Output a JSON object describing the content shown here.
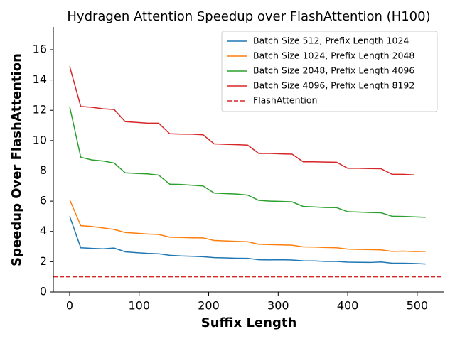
{
  "chart_data": {
    "type": "line",
    "title": "Hydragen Attention Speedup over FlashAttention (H100)",
    "x_label": "Suffix Length",
    "y_label": "Speedup Over FlashAttention",
    "x": [
      0,
      16,
      32,
      48,
      64,
      80,
      96,
      112,
      128,
      144,
      160,
      176,
      192,
      208,
      224,
      240,
      256,
      272,
      288,
      304,
      320,
      336,
      352,
      368,
      384,
      400,
      416,
      432,
      448,
      464,
      480,
      496,
      512
    ],
    "series": [
      {
        "name": "Batch Size 512, Prefix Length 1024",
        "color": "#1f77b4",
        "values": [
          5.0,
          2.92,
          2.88,
          2.85,
          2.9,
          2.65,
          2.6,
          2.55,
          2.52,
          2.42,
          2.38,
          2.36,
          2.33,
          2.27,
          2.25,
          2.23,
          2.22,
          2.13,
          2.12,
          2.13,
          2.11,
          2.06,
          2.05,
          2.02,
          2.02,
          1.97,
          1.96,
          1.95,
          1.98,
          1.9,
          1.9,
          1.88,
          1.85
        ]
      },
      {
        "name": "Batch Size 1024, Prefix Length 2048",
        "color": "#ff7f0e",
        "values": [
          6.1,
          4.38,
          4.33,
          4.23,
          4.13,
          3.93,
          3.88,
          3.83,
          3.8,
          3.62,
          3.6,
          3.58,
          3.57,
          3.4,
          3.37,
          3.34,
          3.32,
          3.15,
          3.13,
          3.11,
          3.09,
          2.98,
          2.97,
          2.94,
          2.92,
          2.83,
          2.81,
          2.8,
          2.78,
          2.68,
          2.7,
          2.67,
          2.68
        ]
      },
      {
        "name": "Batch Size 2048, Prefix Length 4096",
        "color": "#2ca02c",
        "values": [
          12.25,
          8.9,
          8.72,
          8.65,
          8.52,
          7.87,
          7.83,
          7.8,
          7.72,
          7.12,
          7.1,
          7.05,
          7.0,
          6.53,
          6.5,
          6.47,
          6.4,
          6.05,
          6.0,
          5.98,
          5.95,
          5.65,
          5.62,
          5.58,
          5.57,
          5.3,
          5.28,
          5.25,
          5.23,
          5.0,
          4.99,
          4.96,
          4.93
        ]
      },
      {
        "name": "Batch Size 4096, Prefix Length 8192",
        "color": "#d62728",
        "values": [
          14.9,
          12.25,
          12.2,
          12.1,
          12.05,
          11.25,
          11.2,
          11.15,
          11.15,
          10.45,
          10.43,
          10.42,
          10.38,
          9.78,
          9.75,
          9.73,
          9.7,
          9.15,
          9.15,
          9.12,
          9.1,
          8.6,
          8.6,
          8.58,
          8.57,
          8.17,
          8.17,
          8.15,
          8.14,
          7.77,
          7.77,
          7.73,
          null
        ]
      }
    ],
    "reference_line": {
      "name": "FlashAttention",
      "value": 1,
      "color": "#d62728",
      "dashed": true
    },
    "xlim": [
      -23.5,
      539
    ],
    "xticks": [
      0,
      100,
      200,
      300,
      400,
      500
    ],
    "ylim": [
      0,
      17.5
    ],
    "yticks": [
      0,
      2,
      4,
      6,
      8,
      10,
      12,
      14,
      16
    ],
    "legend": "upper right",
    "grid": false
  }
}
